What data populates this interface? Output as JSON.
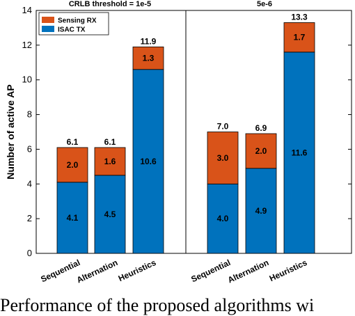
{
  "chart_data": {
    "type": "bar",
    "stacked": true,
    "ylabel": "Number of active AP",
    "ylim": [
      0,
      14
    ],
    "yticks": [
      0,
      2,
      4,
      6,
      8,
      10,
      12,
      14
    ],
    "grid": false,
    "legend_placement": "top-left",
    "series_colors": [
      "#0072BD",
      "#D95319"
    ],
    "groups": [
      {
        "title": "CRLB threshold = 1e-5",
        "categories": [
          "Sequential",
          "Alternation",
          "Heuristics"
        ],
        "series": [
          {
            "name": "ISAC TX",
            "values": [
              4.1,
              4.5,
              10.6
            ],
            "labels": [
              "4.1",
              "4.5",
              "10.6"
            ]
          },
          {
            "name": "Sensing RX",
            "values": [
              2.0,
              1.6,
              1.3
            ],
            "labels": [
              "2.0",
              "1.6",
              "1.3"
            ]
          }
        ],
        "totals": [
          "6.1",
          "6.1",
          "11.9"
        ]
      },
      {
        "title": "5e-6",
        "categories": [
          "Sequential",
          "Alternation",
          "Heuristics"
        ],
        "series": [
          {
            "name": "ISAC TX",
            "values": [
              4.0,
              4.9,
              11.6
            ],
            "labels": [
              "4.0",
              "4.9",
              "11.6"
            ]
          },
          {
            "name": "Sensing RX",
            "values": [
              3.0,
              2.0,
              1.7
            ],
            "labels": [
              "3.0",
              "2.0",
              "1.7"
            ]
          }
        ],
        "totals": [
          "7.0",
          "6.9",
          "13.3"
        ]
      }
    ]
  },
  "caption": "Performance of the proposed algorithms wi"
}
